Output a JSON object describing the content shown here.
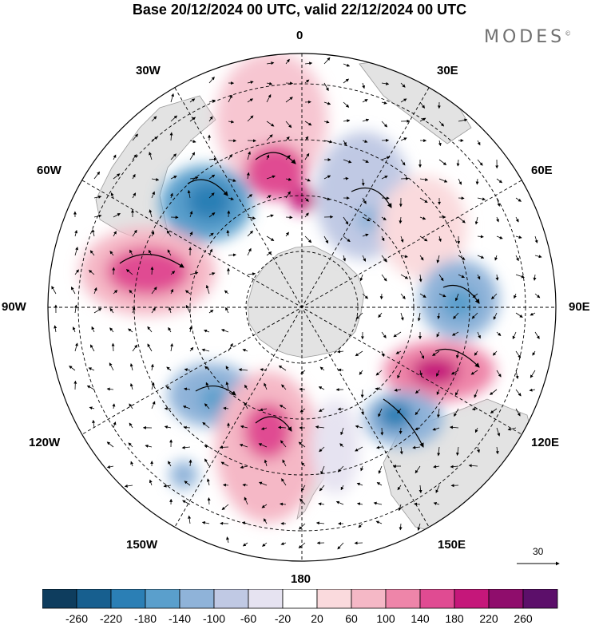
{
  "title": "Base 20/12/2024 00 UTC, valid 22/12/2024 00 UTC",
  "logo": {
    "text": "MODES",
    "mark": "©"
  },
  "longitude_labels": {
    "deg0": "0",
    "deg30e": "30E",
    "deg60e": "60E",
    "deg90e": "90E",
    "deg120e": "120E",
    "deg150e": "150E",
    "deg180": "180",
    "deg150w": "150W",
    "deg120w": "120W",
    "deg90w": "90W",
    "deg60w": "60W",
    "deg30w": "30W"
  },
  "vector_scale": {
    "label": "30"
  },
  "colorbar": {
    "tick_labels": [
      "-260",
      "-220",
      "-180",
      "-140",
      "-100",
      "-60",
      "-20",
      "20",
      "60",
      "100",
      "140",
      "180",
      "220",
      "260"
    ],
    "colors": [
      "#0e3d5e",
      "#175f8f",
      "#2b7fb5",
      "#5a9fcc",
      "#8fb3d9",
      "#c0c9e4",
      "#e6e3f1",
      "#ffffff",
      "#fadadd",
      "#f5b8c6",
      "#ee85a9",
      "#e04b92",
      "#c5177a",
      "#8f0d6c",
      "#5c0f6a"
    ]
  },
  "map_colors": {
    "land": "#e3e3e3",
    "coast": "#9a9a9a",
    "graticule": "#000000"
  }
}
